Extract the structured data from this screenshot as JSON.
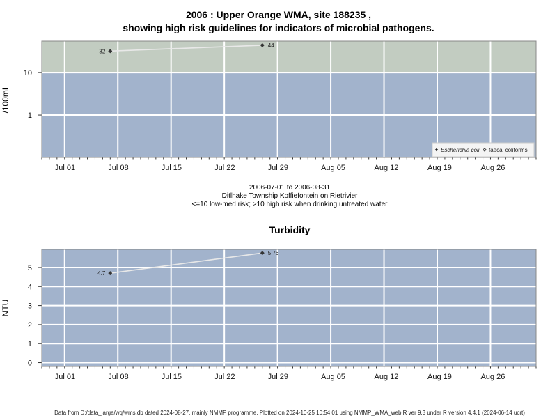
{
  "header": {
    "title_line1": "2006 : Upper Orange WMA, site 188235 ,",
    "title_line2": "showing high risk guidelines for indicators of microbial pathogens."
  },
  "info": {
    "date_range": "2006-07-01 to 2006-08-31",
    "location": "Ditlhake Township Koffiefontein on Rietrivier",
    "guideline": "<=10 low-med risk; >10 high risk when drinking untreated water"
  },
  "footer": {
    "text": "Data from D:/data_large/wq/wms.db dated 2024-08-27, mainly NMMP programme. Plotted on 2024-10-25 10:54:01 using NMMP_WMA_web.R ver 9.3 under R version 4.4.1 (2024-06-14 ucrt)"
  },
  "colors": {
    "high_risk_zone": "#c2ccc1",
    "low_risk_zone": "#a2b3cc",
    "grid": "#ffffff",
    "line": "#e8e8e8",
    "point": "#333333"
  },
  "chart_data": [
    {
      "type": "line",
      "title": "",
      "xlabel": "",
      "ylabel": "/100mL",
      "y_scale": "log",
      "ylim": [
        0.1,
        55
      ],
      "xlim": [
        "2006-06-28",
        "2006-09-01"
      ],
      "x_ticks": [
        "Jul 01",
        "Jul 08",
        "Jul 15",
        "Jul 22",
        "Jul 29",
        "Aug 05",
        "Aug 12",
        "Aug 19",
        "Aug 26"
      ],
      "x_tick_dates": [
        "2006-07-01",
        "2006-07-08",
        "2006-07-15",
        "2006-07-22",
        "2006-07-29",
        "2006-08-05",
        "2006-08-12",
        "2006-08-19",
        "2006-08-26"
      ],
      "y_ticks": [
        1,
        10
      ],
      "y_tick_labels": [
        "1",
        "10"
      ],
      "threshold": 10,
      "grid": true,
      "legend_placement": "bottom-right",
      "legend": [
        "Escherichia coli",
        "faecal coliforms"
      ],
      "series": [
        {
          "name": "Escherichia coli",
          "x": [
            "2006-07-07",
            "2006-07-27"
          ],
          "y": [
            32,
            44
          ],
          "labels": [
            "32",
            "44"
          ]
        }
      ]
    },
    {
      "type": "line",
      "title": "Turbidity",
      "xlabel": "",
      "ylabel": "NTU",
      "ylim": [
        -0.2,
        5.95
      ],
      "xlim": [
        "2006-06-28",
        "2006-09-01"
      ],
      "x_ticks": [
        "Jul 01",
        "Jul 08",
        "Jul 15",
        "Jul 22",
        "Jul 29",
        "Aug 05",
        "Aug 12",
        "Aug 19",
        "Aug 26"
      ],
      "x_tick_dates": [
        "2006-07-01",
        "2006-07-08",
        "2006-07-15",
        "2006-07-22",
        "2006-07-29",
        "2006-08-05",
        "2006-08-12",
        "2006-08-19",
        "2006-08-26"
      ],
      "y_ticks": [
        0,
        1,
        2,
        3,
        4,
        5
      ],
      "y_tick_labels": [
        "0",
        "1",
        "2",
        "3",
        "4",
        "5"
      ],
      "grid": true,
      "series": [
        {
          "name": "Turbidity",
          "x": [
            "2006-07-07",
            "2006-07-27"
          ],
          "y": [
            4.7,
            5.76
          ],
          "labels": [
            "4.7",
            "5.76"
          ]
        }
      ]
    }
  ]
}
